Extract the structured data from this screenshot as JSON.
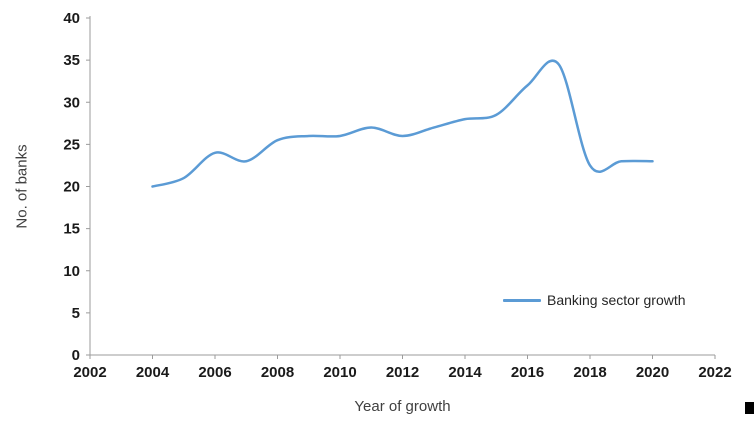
{
  "chart_data": {
    "type": "line",
    "title": "",
    "xlabel": "Year of growth",
    "ylabel": "No. of banks",
    "xlim": [
      2002,
      2022
    ],
    "ylim": [
      0,
      40
    ],
    "x_ticks": [
      2002,
      2004,
      2006,
      2008,
      2010,
      2012,
      2014,
      2016,
      2018,
      2020,
      2022
    ],
    "y_ticks": [
      0,
      5,
      10,
      15,
      20,
      25,
      30,
      35,
      40
    ],
    "grid": false,
    "x": [
      2004,
      2005,
      2006,
      2007,
      2008,
      2009,
      2010,
      2011,
      2012,
      2013,
      2014,
      2015,
      2016,
      2017,
      2018,
      2019,
      2020
    ],
    "series": [
      {
        "name": "Banking sector growth",
        "color": "#5B9BD5",
        "values": [
          20,
          21,
          24,
          23,
          25.5,
          26,
          26,
          27,
          26,
          27,
          28,
          28.5,
          32,
          34.5,
          22.5,
          23,
          23
        ]
      }
    ],
    "legend": {
      "label": "Banking sector growth",
      "position": "inside-lower-right"
    }
  }
}
